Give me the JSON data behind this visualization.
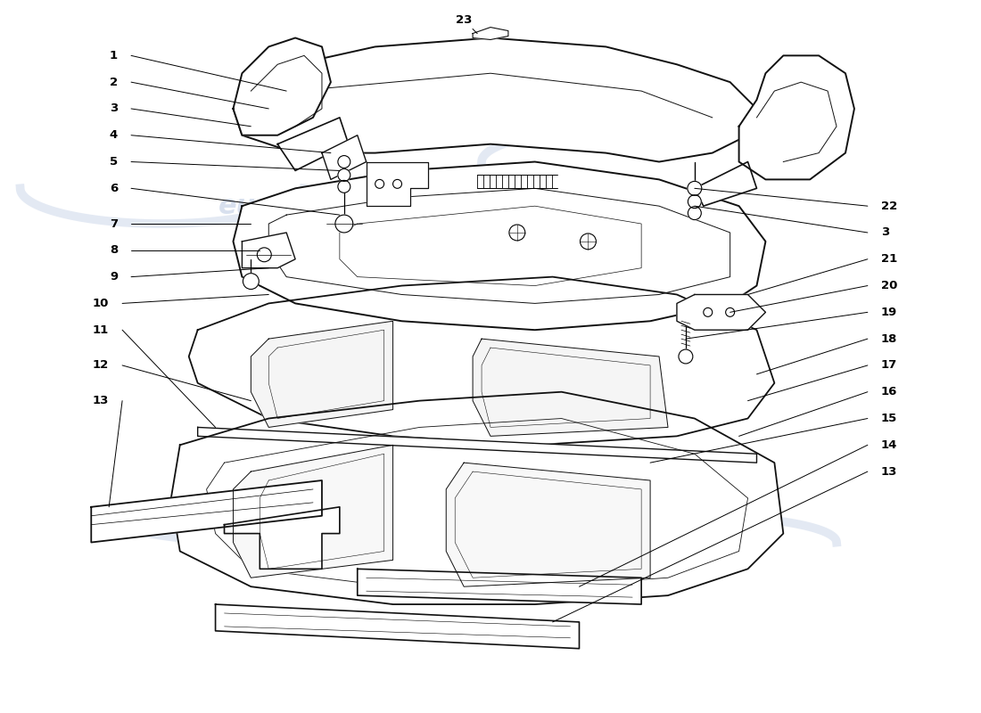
{
  "bg_color": "#ffffff",
  "line_color": "#111111",
  "watermark_color": "#c8d4e8",
  "fig_w": 11.0,
  "fig_h": 8.0,
  "dpi": 100
}
